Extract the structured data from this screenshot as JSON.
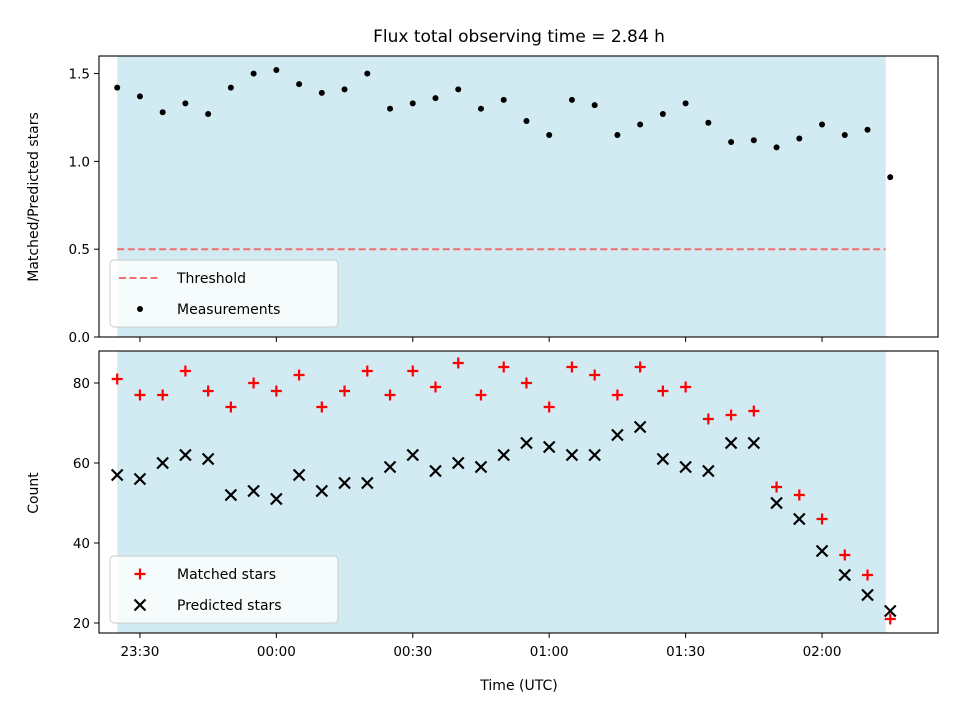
{
  "chart_data": [
    {
      "type": "scatter",
      "title": "Flux total observing time = 2.84 h",
      "xlabel": "",
      "ylabel": "Matched/Predicted stars",
      "ylim": [
        0,
        1.6
      ],
      "yticks": [
        "0.0",
        "0.5",
        "1.0",
        "1.5"
      ],
      "ytick_values": [
        0,
        0.5,
        1.0,
        1.5
      ],
      "xlim": [
        "23:21:00",
        "02:25:30"
      ],
      "shaded_span": [
        "23:25",
        "02:14"
      ],
      "shade_color": "#add8e6",
      "legend_position": "lower left",
      "threshold": {
        "name": "Threshold",
        "value": 0.5,
        "color": "#f07070",
        "style": "dashed"
      },
      "series": [
        {
          "name": "Measurements",
          "color": "#000000",
          "marker": "dot",
          "x": [
            "23:25",
            "23:30",
            "23:35",
            "23:40",
            "23:45",
            "23:50",
            "23:55",
            "00:00",
            "00:05",
            "00:10",
            "00:15",
            "00:20",
            "00:25",
            "00:30",
            "00:35",
            "00:40",
            "00:45",
            "00:50",
            "00:55",
            "01:00",
            "01:05",
            "01:10",
            "01:15",
            "01:20",
            "01:25",
            "01:30",
            "01:35",
            "01:40",
            "01:45",
            "01:50",
            "01:55",
            "02:00",
            "02:05",
            "02:10",
            "02:15"
          ],
          "y": [
            1.42,
            1.37,
            1.28,
            1.33,
            1.27,
            1.42,
            1.5,
            1.52,
            1.44,
            1.39,
            1.41,
            1.5,
            1.3,
            1.33,
            1.36,
            1.41,
            1.3,
            1.35,
            1.23,
            1.15,
            1.35,
            1.32,
            1.15,
            1.21,
            1.27,
            1.33,
            1.22,
            1.11,
            1.12,
            1.08,
            1.13,
            1.21,
            1.15,
            1.18,
            0.91
          ]
        }
      ]
    },
    {
      "type": "scatter",
      "title": "",
      "xlabel": "Time (UTC)",
      "ylabel": "Count",
      "ylim": [
        17.5,
        88
      ],
      "yticks": [
        "20",
        "40",
        "60",
        "80"
      ],
      "ytick_values": [
        20,
        40,
        60,
        80
      ],
      "xticks": [
        "23:30",
        "00:00",
        "00:30",
        "01:00",
        "01:30",
        "02:00"
      ],
      "xlim": [
        "23:21:00",
        "02:25:30"
      ],
      "shaded_span": [
        "23:25",
        "02:14"
      ],
      "shade_color": "#add8e6",
      "legend_position": "lower left",
      "series": [
        {
          "name": "Matched stars",
          "color": "#ff0000",
          "marker": "plus",
          "x": [
            "23:25",
            "23:30",
            "23:35",
            "23:40",
            "23:45",
            "23:50",
            "23:55",
            "00:00",
            "00:05",
            "00:10",
            "00:15",
            "00:20",
            "00:25",
            "00:30",
            "00:35",
            "00:40",
            "00:45",
            "00:50",
            "00:55",
            "01:00",
            "01:05",
            "01:10",
            "01:15",
            "01:20",
            "01:25",
            "01:30",
            "01:35",
            "01:40",
            "01:45",
            "01:50",
            "01:55",
            "02:00",
            "02:05",
            "02:10",
            "02:15"
          ],
          "y": [
            81,
            77,
            77,
            83,
            78,
            74,
            80,
            78,
            82,
            74,
            78,
            83,
            77,
            83,
            79,
            85,
            77,
            84,
            80,
            74,
            84,
            82,
            77,
            84,
            78,
            79,
            71,
            72,
            73,
            54,
            52,
            46,
            37,
            32,
            21
          ]
        },
        {
          "name": "Predicted stars",
          "color": "#000000",
          "marker": "x",
          "x": [
            "23:25",
            "23:30",
            "23:35",
            "23:40",
            "23:45",
            "23:50",
            "23:55",
            "00:00",
            "00:05",
            "00:10",
            "00:15",
            "00:20",
            "00:25",
            "00:30",
            "00:35",
            "00:40",
            "00:45",
            "00:50",
            "00:55",
            "01:00",
            "01:05",
            "01:10",
            "01:15",
            "01:20",
            "01:25",
            "01:30",
            "01:35",
            "01:40",
            "01:45",
            "01:50",
            "01:55",
            "02:00",
            "02:05",
            "02:10",
            "02:15"
          ],
          "y": [
            57,
            56,
            60,
            62,
            61,
            52,
            53,
            51,
            57,
            53,
            55,
            55,
            59,
            62,
            58,
            60,
            59,
            62,
            65,
            64,
            62,
            62,
            67,
            69,
            61,
            59,
            58,
            65,
            65,
            50,
            46,
            38,
            32,
            27,
            23
          ]
        }
      ]
    }
  ]
}
